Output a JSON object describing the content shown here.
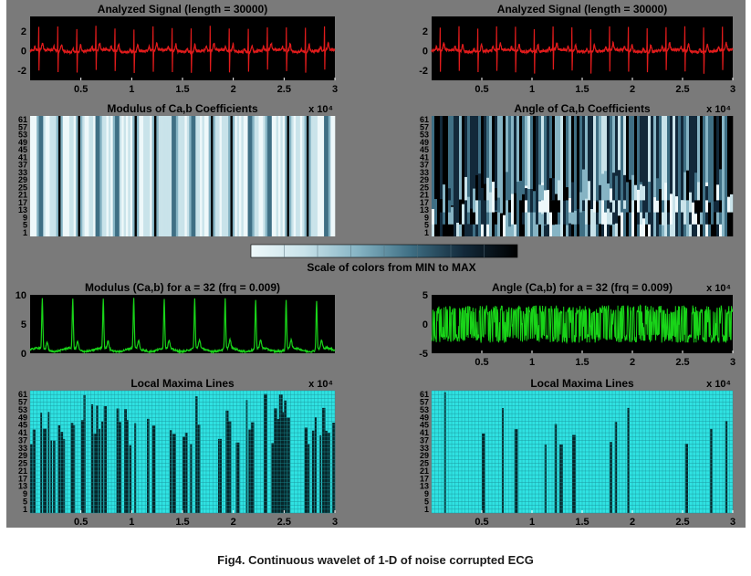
{
  "caption": "Fig4. Continuous wavelet of 1-D of noise corrupted ECG",
  "colorbar_label": "Scale of colors from MIN to MAX",
  "colors": {
    "background": "#7a7a7a",
    "plot_bg": "#000000",
    "signal": "#e11b1b",
    "modulus_line": "#19d419",
    "maxima": "#2fe2e2",
    "colormap": [
      "#eef8fa",
      "#c9e3ea",
      "#86b4c4",
      "#3f6f84",
      "#12293a",
      "#000000"
    ]
  },
  "chart_data": [
    {
      "id": "sig_left",
      "type": "line",
      "title": "Analyzed Signal  (length = 30000)",
      "xlabel": "",
      "ylabel": "",
      "xlim": [
        0,
        30000
      ],
      "ylim": [
        -3,
        3.5
      ],
      "xticks": [
        5000,
        10000,
        15000,
        20000,
        25000,
        30000
      ],
      "xticklabels": [
        "0.5",
        "1",
        "1.5",
        "2",
        "2.5",
        "3"
      ],
      "yticks": [
        -2,
        0,
        2
      ],
      "yticklabels": [
        "-2",
        "0",
        "2"
      ],
      "exponent_label": "",
      "series": [
        {
          "color": "#e11b1b",
          "beat_count": 16,
          "qrs_min": -2.4,
          "qrs_max": 3.0,
          "baseline": 0
        }
      ]
    },
    {
      "id": "sig_right",
      "type": "line",
      "title": "Analyzed Signal  (length = 30000)",
      "xlabel": "",
      "ylabel": "",
      "xlim": [
        0,
        30000
      ],
      "ylim": [
        -3,
        3.5
      ],
      "xticks": [
        5000,
        10000,
        15000,
        20000,
        25000,
        30000
      ],
      "xticklabels": [
        "0.5",
        "1",
        "1.5",
        "2",
        "2.5",
        "3"
      ],
      "yticks": [
        -2,
        0,
        2
      ],
      "yticklabels": [
        "-2",
        "0",
        "2"
      ],
      "exponent_label": "",
      "series": [
        {
          "color": "#e11b1b",
          "beat_count": 16,
          "qrs_min": -2.4,
          "qrs_max": 3.0,
          "baseline": 0
        }
      ]
    },
    {
      "id": "mod_coeff",
      "type": "heatmap",
      "title": "Modulus of Ca,b Coefficients",
      "xlabel": "",
      "ylabel": "",
      "xlim": [
        0,
        30000
      ],
      "yticklabels": [
        "1",
        "5",
        "9",
        "13",
        "17",
        "21",
        "25",
        "29",
        "33",
        "37",
        "41",
        "45",
        "49",
        "53",
        "57",
        "61"
      ],
      "exponent_label": "x 10⁴",
      "pattern": "vertical-bands",
      "band_count": 16
    },
    {
      "id": "ang_coeff",
      "type": "heatmap",
      "title": "Angle of Ca,b Coefficients",
      "xlabel": "",
      "ylabel": "",
      "xlim": [
        0,
        30000
      ],
      "yticklabels": [
        "1",
        "5",
        "9",
        "13",
        "17",
        "21",
        "25",
        "29",
        "33",
        "37",
        "41",
        "45",
        "49",
        "53",
        "57",
        "61"
      ],
      "exponent_label": "x 10⁴",
      "pattern": "dark-mixed"
    },
    {
      "id": "mod_line",
      "type": "line",
      "title": "Modulus (Ca,b)   for a = 32 (frq =    0.009)",
      "xlabel": "",
      "ylabel": "",
      "xlim": [
        0,
        30000
      ],
      "ylim": [
        0,
        10
      ],
      "yticks": [
        0,
        5,
        10
      ],
      "yticklabels": [
        "0",
        "5",
        "10"
      ],
      "exponent_label": "",
      "series": [
        {
          "color": "#19d419",
          "peak_count": 10,
          "peak_value": 8.5,
          "baseline": 0.6
        }
      ]
    },
    {
      "id": "ang_line",
      "type": "line",
      "title": "Angle (Ca,b)   for a = 32 (frq =    0.009)",
      "xlabel": "",
      "ylabel": "",
      "xlim": [
        0,
        30000
      ],
      "ylim": [
        -5,
        5
      ],
      "xticks": [
        5000,
        10000,
        15000,
        20000,
        25000,
        30000
      ],
      "xticklabels": [
        "0.5",
        "1",
        "1.5",
        "2",
        "2.5",
        "3"
      ],
      "yticks": [
        -5,
        0,
        5
      ],
      "yticklabels": [
        "-5",
        "0",
        "5"
      ],
      "exponent_label": "x 10⁴",
      "series": [
        {
          "color": "#19d419",
          "range": [
            -3.2,
            3.2
          ]
        }
      ]
    },
    {
      "id": "lml_left",
      "type": "heatmap",
      "title": "Local Maxima Lines",
      "xlabel": "",
      "ylabel": "",
      "xlim": [
        0,
        30000
      ],
      "xticks": [
        5000,
        10000,
        15000,
        20000,
        25000,
        30000
      ],
      "xticklabels": [
        "0.5",
        "1",
        "1.5",
        "2",
        "2.5",
        "3"
      ],
      "yticklabels": [
        "1",
        "5",
        "9",
        "13",
        "17",
        "21",
        "25",
        "29",
        "33",
        "37",
        "41",
        "45",
        "49",
        "53",
        "57",
        "61"
      ],
      "exponent_label": "x 10⁴",
      "pattern": "maxima-dark"
    },
    {
      "id": "lml_right",
      "type": "heatmap",
      "title": "Local Maxima Lines",
      "xlabel": "",
      "ylabel": "",
      "xlim": [
        0,
        30000
      ],
      "xticks": [
        5000,
        10000,
        15000,
        20000,
        25000,
        30000
      ],
      "xticklabels": [
        "0.5",
        "1",
        "1.5",
        "2",
        "2.5",
        "3"
      ],
      "yticklabels": [
        "1",
        "5",
        "9",
        "13",
        "17",
        "21",
        "25",
        "29",
        "33",
        "37",
        "41",
        "45",
        "49",
        "53",
        "57",
        "61"
      ],
      "exponent_label": "x 10⁴",
      "pattern": "maxima-light"
    }
  ]
}
